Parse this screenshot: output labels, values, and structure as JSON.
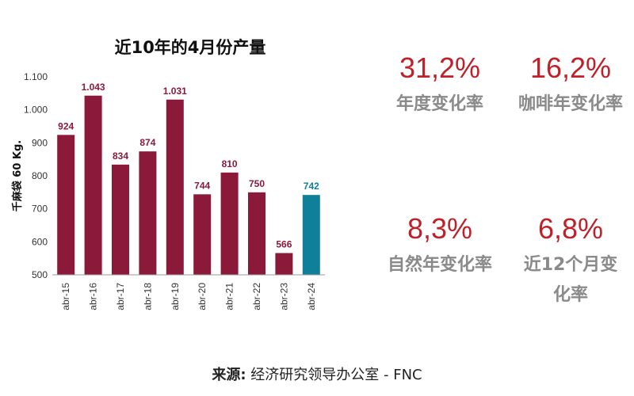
{
  "chart_data": {
    "type": "bar",
    "title": "近10年的4月份产量",
    "ylabel": "千麻袋 60 Kg.",
    "categories": [
      "abr-15",
      "abr-16",
      "abr-17",
      "abr-18",
      "abr-19",
      "abr-20",
      "abr-21",
      "abr-22",
      "abr-23",
      "abr-24"
    ],
    "values": [
      924,
      1043,
      834,
      874,
      1031,
      744,
      810,
      750,
      566,
      742
    ],
    "value_labels": [
      "924",
      "1.043",
      "834",
      "874",
      "1.031",
      "744",
      "810",
      "750",
      "566",
      "742"
    ],
    "ylim": [
      500,
      1100
    ],
    "yticks": [
      500,
      600,
      700,
      800,
      900,
      1000,
      1100
    ],
    "ytick_labels": [
      "500",
      "600",
      "700",
      "800",
      "900",
      "1.000",
      "1.100"
    ],
    "grid": false,
    "colors": {
      "bar": "#8b1a3a",
      "highlight": "#0f7f9a"
    },
    "highlight_index": 9
  },
  "kpis": [
    {
      "value": "31,2%",
      "label": "年度变化率"
    },
    {
      "value": "16,2%",
      "label": "咖啡年变化率"
    },
    {
      "value": "8,3%",
      "label": "自然年变化率"
    },
    {
      "value": "6,8%",
      "label": "近12个月变化率"
    }
  ],
  "source": {
    "label": "来源:",
    "text": "经济研究领导办公室 - FNC"
  }
}
